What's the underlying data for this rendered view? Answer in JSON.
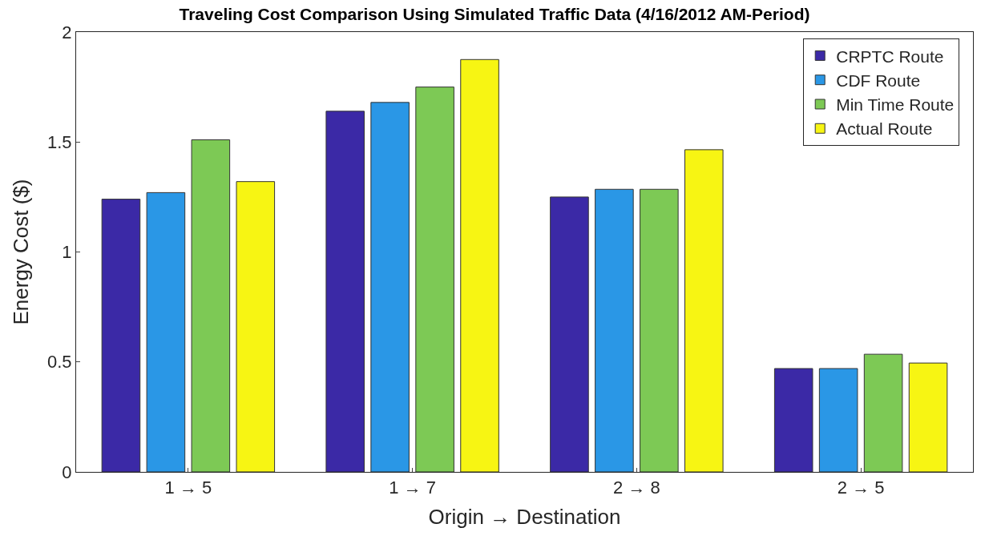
{
  "chart_data": {
    "type": "bar",
    "title": "Traveling Cost Comparison Using Simulated Traffic Data (4/16/2012 AM-Period)",
    "xlabel": "Origin → Destination",
    "ylabel": "Energy Cost ($)",
    "categories": [
      "1 → 5",
      "1 → 7",
      "2 → 8",
      "2 → 5"
    ],
    "series": [
      {
        "name": "CRPTC Route",
        "color": "#3b29a6",
        "values": [
          1.24,
          1.64,
          1.25,
          0.47
        ]
      },
      {
        "name": "CDF Route",
        "color": "#2a97e6",
        "values": [
          1.27,
          1.68,
          1.285,
          0.47
        ]
      },
      {
        "name": "Min Time Route",
        "color": "#7dc955",
        "values": [
          1.51,
          1.75,
          1.285,
          0.535
        ]
      },
      {
        "name": "Actual Route",
        "color": "#f7f513",
        "values": [
          1.32,
          1.875,
          1.465,
          0.495
        ]
      }
    ],
    "ylim": [
      0,
      2
    ],
    "yticks": [
      0,
      0.5,
      1,
      1.5,
      2
    ],
    "legend": "top right"
  }
}
